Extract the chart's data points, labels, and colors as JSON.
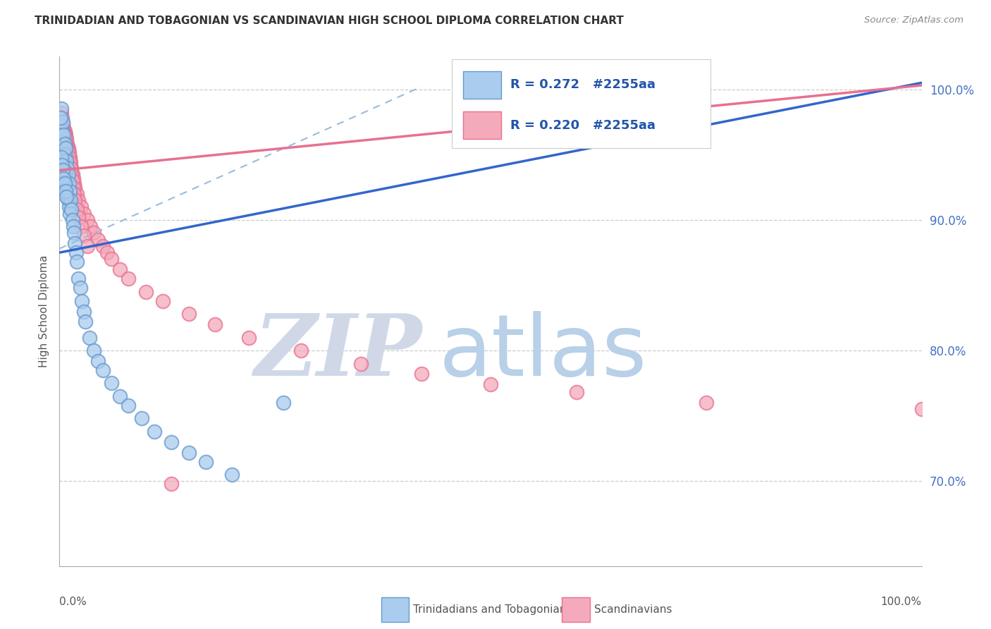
{
  "title": "TRINIDADIAN AND TOBAGONIAN VS SCANDINAVIAN HIGH SCHOOL DIPLOMA CORRELATION CHART",
  "source": "Source: ZipAtlas.com",
  "ylabel": "High School Diploma",
  "yticks": [
    0.7,
    0.8,
    0.9,
    1.0
  ],
  "ytick_labels": [
    "70.0%",
    "80.0%",
    "90.0%",
    "100.0%"
  ],
  "legend_bottom": [
    "Trinidadians and Tobagonians",
    "Scandinavians"
  ],
  "trint_edge_color": "#6699cc",
  "trint_face_color": "#aaccee",
  "scand_edge_color": "#e87090",
  "scand_face_color": "#f4aabb",
  "blue_line_color": "#3366cc",
  "pink_line_color": "#e87090",
  "dashed_line_color": "#99bbdd",
  "watermark_zip_color": "#c0d8f0",
  "watermark_atlas_color": "#b0c8e8",
  "xlim": [
    0.0,
    1.0
  ],
  "ylim": [
    0.635,
    1.025
  ],
  "blue_line_x0": 0.0,
  "blue_line_y0": 0.875,
  "blue_line_x1": 1.0,
  "blue_line_y1": 1.005,
  "pink_line_x0": 0.0,
  "pink_line_y0": 0.938,
  "pink_line_x1": 1.0,
  "pink_line_y1": 1.003,
  "dash_line_x0": 0.0,
  "dash_line_y0": 0.878,
  "dash_line_x1": 0.42,
  "dash_line_y1": 1.002,
  "trint_scatter_x": [
    0.001,
    0.002,
    0.002,
    0.003,
    0.003,
    0.004,
    0.004,
    0.005,
    0.005,
    0.006,
    0.006,
    0.006,
    0.007,
    0.007,
    0.008,
    0.008,
    0.009,
    0.009,
    0.01,
    0.01,
    0.011,
    0.011,
    0.012,
    0.012,
    0.013,
    0.014,
    0.015,
    0.016,
    0.017,
    0.018,
    0.019,
    0.02,
    0.022,
    0.024,
    0.026,
    0.028,
    0.03,
    0.035,
    0.04,
    0.045,
    0.05,
    0.06,
    0.07,
    0.08,
    0.095,
    0.11,
    0.13,
    0.15,
    0.17,
    0.2,
    0.001,
    0.002,
    0.003,
    0.004,
    0.005,
    0.006,
    0.007,
    0.008,
    0.26
  ],
  "trint_scatter_y": [
    0.972,
    0.985,
    0.96,
    0.968,
    0.952,
    0.975,
    0.945,
    0.965,
    0.94,
    0.958,
    0.935,
    0.95,
    0.955,
    0.93,
    0.945,
    0.925,
    0.94,
    0.918,
    0.935,
    0.915,
    0.928,
    0.91,
    0.922,
    0.905,
    0.915,
    0.908,
    0.9,
    0.895,
    0.89,
    0.882,
    0.875,
    0.868,
    0.855,
    0.848,
    0.838,
    0.83,
    0.822,
    0.81,
    0.8,
    0.792,
    0.785,
    0.775,
    0.765,
    0.758,
    0.748,
    0.738,
    0.73,
    0.722,
    0.715,
    0.705,
    0.978,
    0.948,
    0.942,
    0.938,
    0.932,
    0.928,
    0.922,
    0.918,
    0.76
  ],
  "scand_scatter_x": [
    0.001,
    0.002,
    0.002,
    0.003,
    0.003,
    0.004,
    0.005,
    0.005,
    0.006,
    0.006,
    0.007,
    0.007,
    0.008,
    0.008,
    0.009,
    0.01,
    0.01,
    0.011,
    0.012,
    0.013,
    0.014,
    0.015,
    0.016,
    0.017,
    0.018,
    0.02,
    0.022,
    0.025,
    0.028,
    0.032,
    0.036,
    0.04,
    0.045,
    0.05,
    0.055,
    0.06,
    0.07,
    0.08,
    0.1,
    0.12,
    0.15,
    0.18,
    0.22,
    0.28,
    0.35,
    0.42,
    0.5,
    0.6,
    0.75,
    1.0,
    0.003,
    0.004,
    0.005,
    0.006,
    0.007,
    0.008,
    0.009,
    0.01,
    0.011,
    0.012,
    0.013,
    0.014,
    0.015,
    0.016,
    0.017,
    0.018,
    0.02,
    0.022,
    0.025,
    0.028,
    0.032,
    0.13
  ],
  "scand_scatter_y": [
    0.978,
    0.982,
    0.974,
    0.978,
    0.97,
    0.974,
    0.97,
    0.965,
    0.968,
    0.96,
    0.965,
    0.958,
    0.962,
    0.955,
    0.958,
    0.955,
    0.948,
    0.952,
    0.948,
    0.944,
    0.94,
    0.935,
    0.932,
    0.928,
    0.925,
    0.92,
    0.915,
    0.91,
    0.905,
    0.9,
    0.895,
    0.89,
    0.885,
    0.88,
    0.875,
    0.87,
    0.862,
    0.855,
    0.845,
    0.838,
    0.828,
    0.82,
    0.81,
    0.8,
    0.79,
    0.782,
    0.774,
    0.768,
    0.76,
    0.755,
    0.975,
    0.972,
    0.968,
    0.965,
    0.962,
    0.958,
    0.955,
    0.952,
    0.948,
    0.944,
    0.94,
    0.935,
    0.93,
    0.925,
    0.92,
    0.915,
    0.908,
    0.902,
    0.895,
    0.888,
    0.88,
    0.698
  ]
}
